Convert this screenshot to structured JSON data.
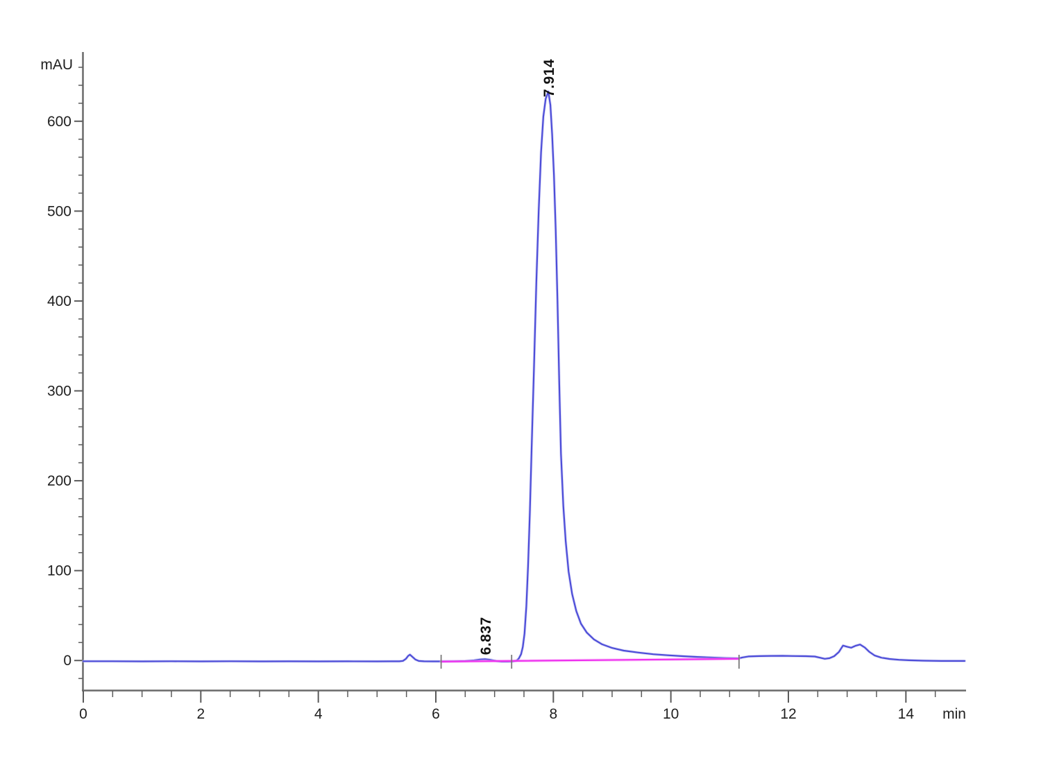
{
  "chart_data": {
    "type": "line",
    "title": "",
    "xlabel": "min",
    "ylabel": "mAU",
    "xlim": [
      0,
      15
    ],
    "ylim": [
      -33,
      677
    ],
    "x_major_ticks": [
      0,
      2,
      4,
      6,
      8,
      10,
      12,
      14
    ],
    "x_minor_step": 0.5,
    "y_major_ticks": [
      0,
      100,
      200,
      300,
      400,
      500,
      600
    ],
    "y_minor_step": 20,
    "y_minor_min": -20,
    "y_minor_max": 660,
    "grid": false,
    "legend_position": "none",
    "colors": {
      "trace": "#4d4dd8",
      "trace_halo": "#b9b9f0",
      "baseline": "#ee2fee",
      "baseline_halo": "#f9a8f9",
      "axis": "#6a6a6a",
      "tick": "#5a5a5a",
      "marker": "#7a7a7a",
      "text": "#1f1f1f",
      "annotation_text": "#111111"
    },
    "series": [
      {
        "name": "detector-signal",
        "color": "#4d4dd8",
        "points": [
          [
            0,
            -0.8
          ],
          [
            0.5,
            -0.8
          ],
          [
            1,
            -1
          ],
          [
            1.5,
            -0.8
          ],
          [
            2,
            -1
          ],
          [
            2.5,
            -0.8
          ],
          [
            3,
            -1
          ],
          [
            3.5,
            -0.9
          ],
          [
            4,
            -1
          ],
          [
            4.5,
            -0.9
          ],
          [
            5,
            -1
          ],
          [
            5.25,
            -0.9
          ],
          [
            5.38,
            -0.9
          ],
          [
            5.44,
            -0.4
          ],
          [
            5.49,
            1.8
          ],
          [
            5.53,
            5.2
          ],
          [
            5.56,
            6.5
          ],
          [
            5.6,
            4.2
          ],
          [
            5.65,
            1.2
          ],
          [
            5.71,
            -0.5
          ],
          [
            5.8,
            -0.9
          ],
          [
            5.95,
            -1
          ],
          [
            6.1,
            -1
          ],
          [
            6.3,
            -0.9
          ],
          [
            6.5,
            -0.6
          ],
          [
            6.65,
            0.2
          ],
          [
            6.76,
            1.2
          ],
          [
            6.84,
            1.5
          ],
          [
            6.93,
            0.8
          ],
          [
            7.03,
            -0.6
          ],
          [
            7.12,
            -1.3
          ],
          [
            7.22,
            -1.3
          ],
          [
            7.3,
            -1.1
          ],
          [
            7.37,
            -0.3
          ],
          [
            7.41,
            2
          ],
          [
            7.45,
            7
          ],
          [
            7.48,
            15
          ],
          [
            7.51,
            30
          ],
          [
            7.54,
            60
          ],
          [
            7.57,
            105
          ],
          [
            7.6,
            165
          ],
          [
            7.63,
            235
          ],
          [
            7.67,
            325
          ],
          [
            7.71,
            420
          ],
          [
            7.75,
            500
          ],
          [
            7.79,
            565
          ],
          [
            7.83,
            605
          ],
          [
            7.87,
            625
          ],
          [
            7.914,
            633
          ],
          [
            7.95,
            618
          ],
          [
            7.98,
            585
          ],
          [
            8.01,
            540
          ],
          [
            8.04,
            480
          ],
          [
            8.07,
            400
          ],
          [
            8.1,
            310
          ],
          [
            8.13,
            230
          ],
          [
            8.17,
            172
          ],
          [
            8.21,
            133
          ],
          [
            8.26,
            99
          ],
          [
            8.32,
            74
          ],
          [
            8.39,
            55
          ],
          [
            8.47,
            41
          ],
          [
            8.57,
            31
          ],
          [
            8.69,
            23.5
          ],
          [
            8.83,
            18
          ],
          [
            9.0,
            14
          ],
          [
            9.2,
            11
          ],
          [
            9.45,
            8.8
          ],
          [
            9.7,
            7
          ],
          [
            9.95,
            5.8
          ],
          [
            10.2,
            4.8
          ],
          [
            10.45,
            4
          ],
          [
            10.7,
            3.3
          ],
          [
            10.95,
            2.7
          ],
          [
            11.16,
            2.4
          ],
          [
            11.22,
            3.4
          ],
          [
            11.32,
            4.5
          ],
          [
            11.5,
            4.9
          ],
          [
            11.7,
            5.1
          ],
          [
            11.9,
            5.2
          ],
          [
            12.1,
            5.0
          ],
          [
            12.3,
            4.8
          ],
          [
            12.45,
            4.4
          ],
          [
            12.55,
            3
          ],
          [
            12.62,
            1.9
          ],
          [
            12.7,
            2.6
          ],
          [
            12.78,
            4.8
          ],
          [
            12.86,
            9.5
          ],
          [
            12.93,
            16.6
          ],
          [
            13.0,
            15.3
          ],
          [
            13.07,
            14.2
          ],
          [
            13.14,
            16.3
          ],
          [
            13.22,
            17.8
          ],
          [
            13.3,
            14.5
          ],
          [
            13.38,
            9.5
          ],
          [
            13.47,
            5.5
          ],
          [
            13.58,
            3.2
          ],
          [
            13.72,
            1.7
          ],
          [
            13.88,
            0.8
          ],
          [
            14.05,
            0.3
          ],
          [
            14.3,
            -0.2
          ],
          [
            14.6,
            -0.5
          ],
          [
            15.0,
            -0.5
          ]
        ]
      },
      {
        "name": "integration-baseline",
        "color": "#ee2fee",
        "points": [
          [
            6.09,
            -1.2
          ],
          [
            11.16,
            1.9
          ]
        ]
      }
    ],
    "peak_annotations": [
      {
        "label": "7.914",
        "x": 7.914,
        "y": 633
      },
      {
        "label": "6.837",
        "x": 6.837,
        "y": 1.5
      }
    ],
    "integration_tick_marks_x": [
      6.09,
      7.29,
      11.16
    ]
  }
}
